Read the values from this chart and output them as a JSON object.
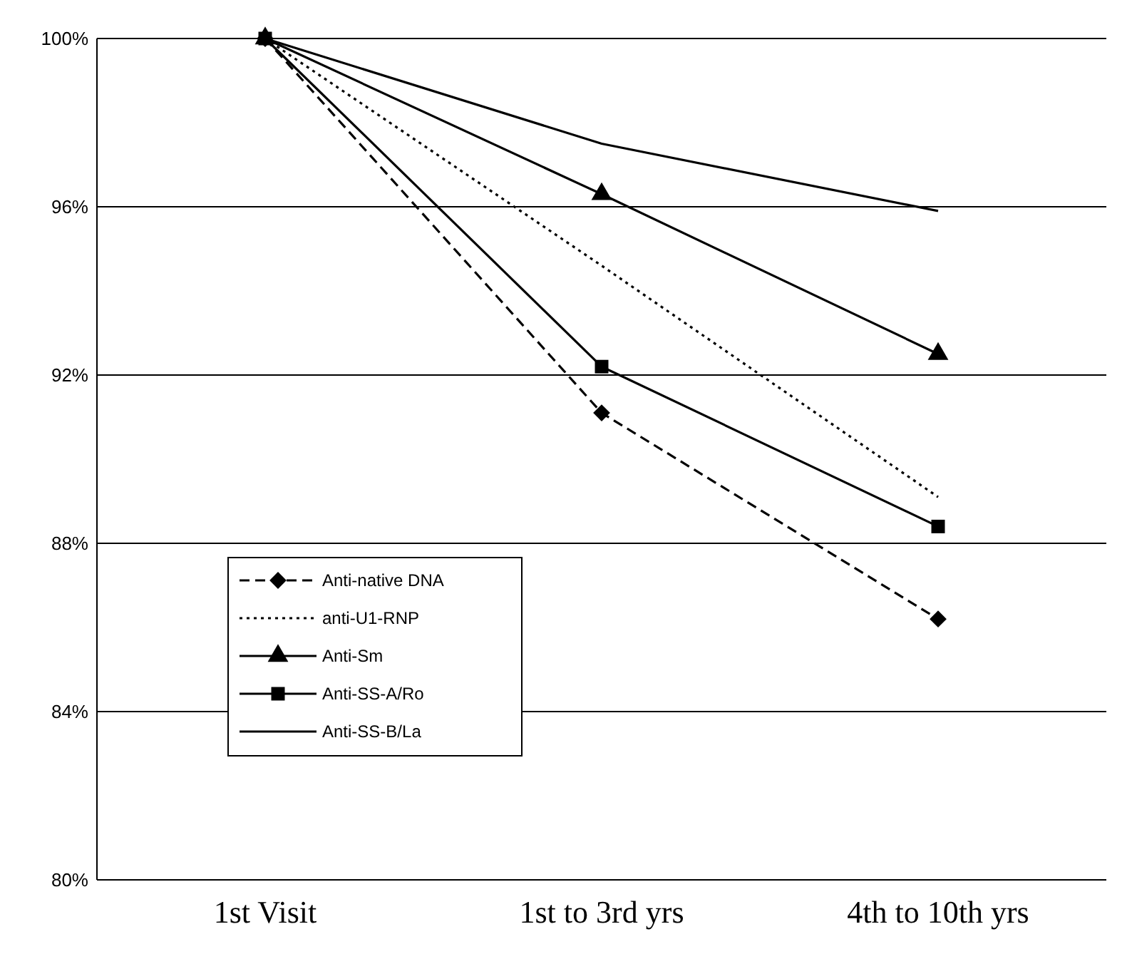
{
  "chart_data": {
    "type": "line",
    "categories": [
      "1st Visit",
      "1st to 3rd yrs",
      "4th to 10th yrs"
    ],
    "series": [
      {
        "name": "Anti-native DNA",
        "color": "#000000",
        "values": [
          100,
          91.1,
          86.2
        ],
        "marker": "diamond",
        "line_style": "dashed"
      },
      {
        "name": "anti-U1-RNP",
        "color": "#000000",
        "values": [
          100,
          94.6,
          89.1
        ],
        "marker": "none",
        "line_style": "dotted"
      },
      {
        "name": "Anti-Sm",
        "color": "#000000",
        "values": [
          100,
          96.3,
          92.5
        ],
        "marker": "triangle",
        "line_style": "solid"
      },
      {
        "name": "Anti-SS-A/Ro",
        "color": "#000000",
        "values": [
          100,
          92.2,
          88.4
        ],
        "marker": "square",
        "line_style": "solid"
      },
      {
        "name": "Anti-SS-B/La",
        "color": "#000000",
        "values": [
          100,
          97.5,
          95.9
        ],
        "marker": "none",
        "line_style": "solid"
      }
    ],
    "ylim": [
      80,
      100
    ],
    "yticks": [
      {
        "value": 80,
        "label": "80%"
      },
      {
        "value": 84,
        "label": "84%"
      },
      {
        "value": 88,
        "label": "88%"
      },
      {
        "value": 92,
        "label": "92%"
      },
      {
        "value": 96,
        "label": "96%"
      },
      {
        "value": 100,
        "label": "100%"
      }
    ],
    "grid": "y",
    "legend": "bottom left"
  }
}
